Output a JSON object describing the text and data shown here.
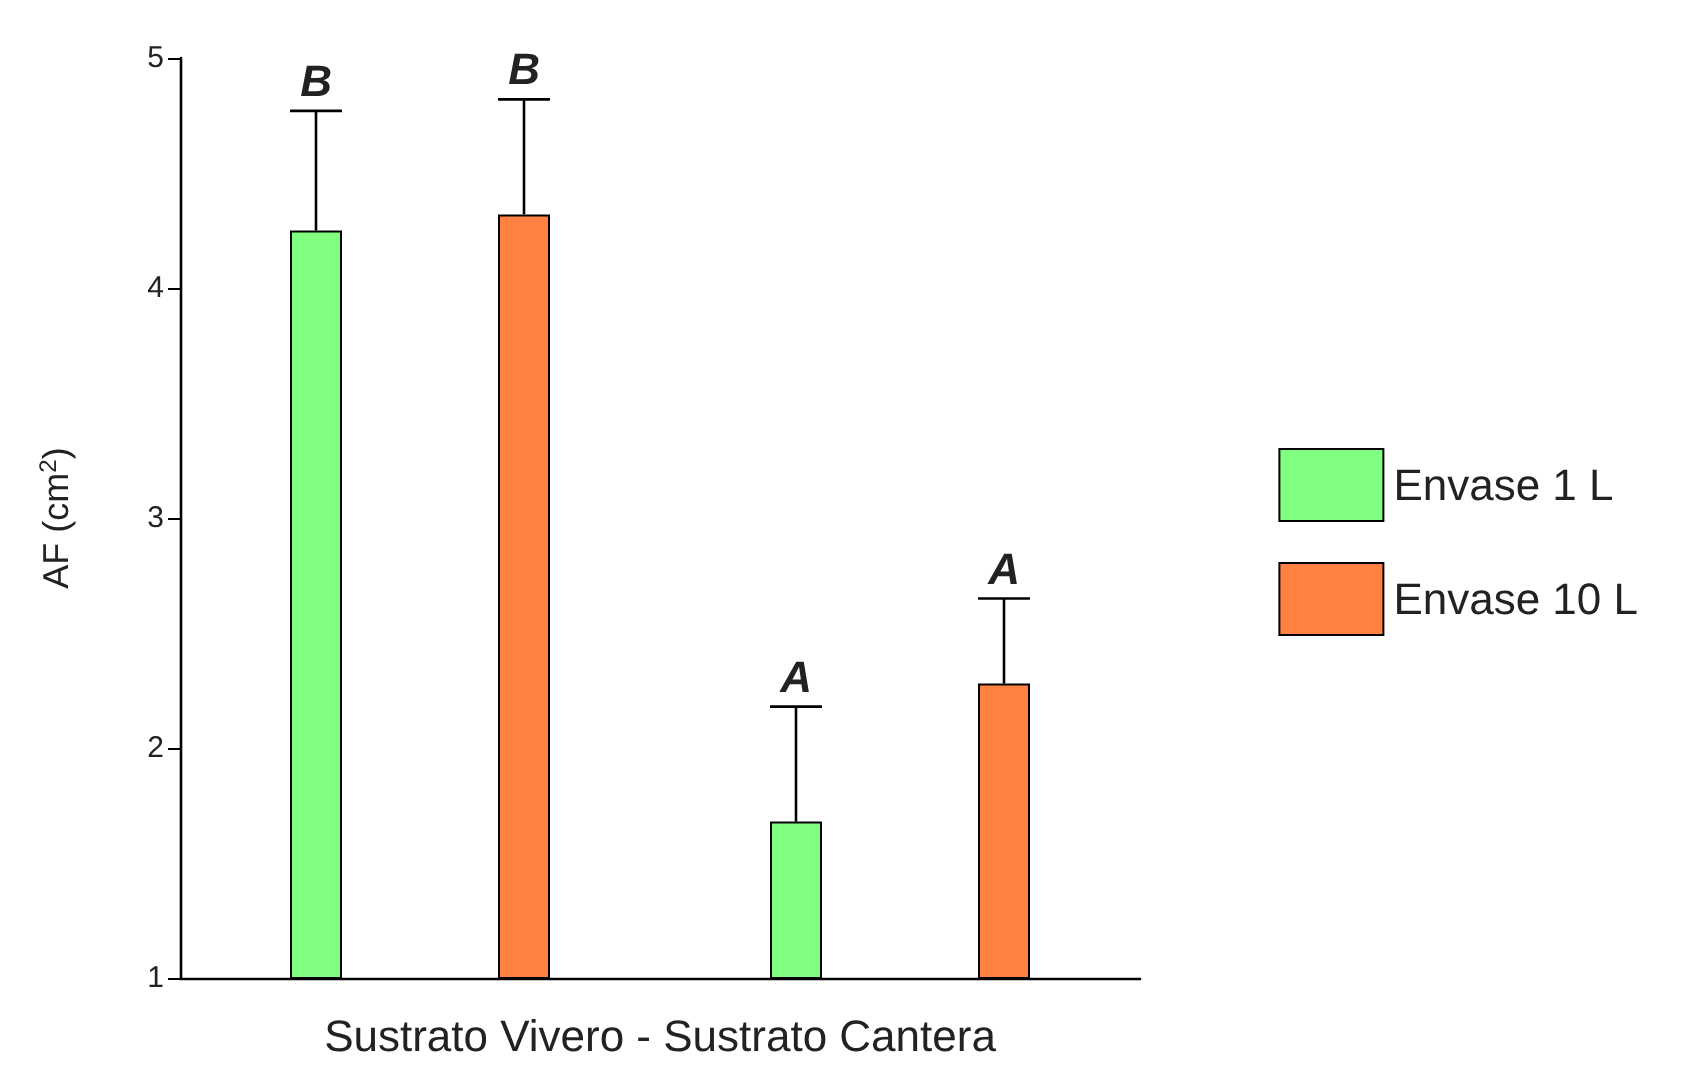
{
  "chart_data": {
    "type": "bar",
    "xlabel": "Sustrato Vivero - Sustrato Cantera",
    "ylabel": "AF (cm$^{2}$)",
    "categories": [
      null,
      null
    ],
    "series": [
      {
        "name": "Envase 1 L",
        "color": "#80ff80",
        "values": [
          4.25,
          1.68
        ],
        "errors": [
          [
            4.25,
            4.77
          ],
          [
            1.68,
            2.18
          ]
        ]
      },
      {
        "name": "Envase 10 L",
        "color": "#ff8040",
        "values": [
          4.32,
          2.28
        ],
        "errors": [
          [
            4.32,
            4.82
          ],
          [
            2.28,
            2.65
          ]
        ]
      }
    ],
    "ylim": [
      1,
      5
    ],
    "yticks": [
      1,
      2,
      3,
      4,
      5
    ],
    "grid": false,
    "legend": "right",
    "annotations": [
      {
        "text": "B",
        "y": 4.77
      },
      {
        "text": "B",
        "y": 4.82
      },
      {
        "text": "A",
        "y": 2.18
      },
      {
        "text": "A",
        "y": 2.65
      }
    ]
  }
}
